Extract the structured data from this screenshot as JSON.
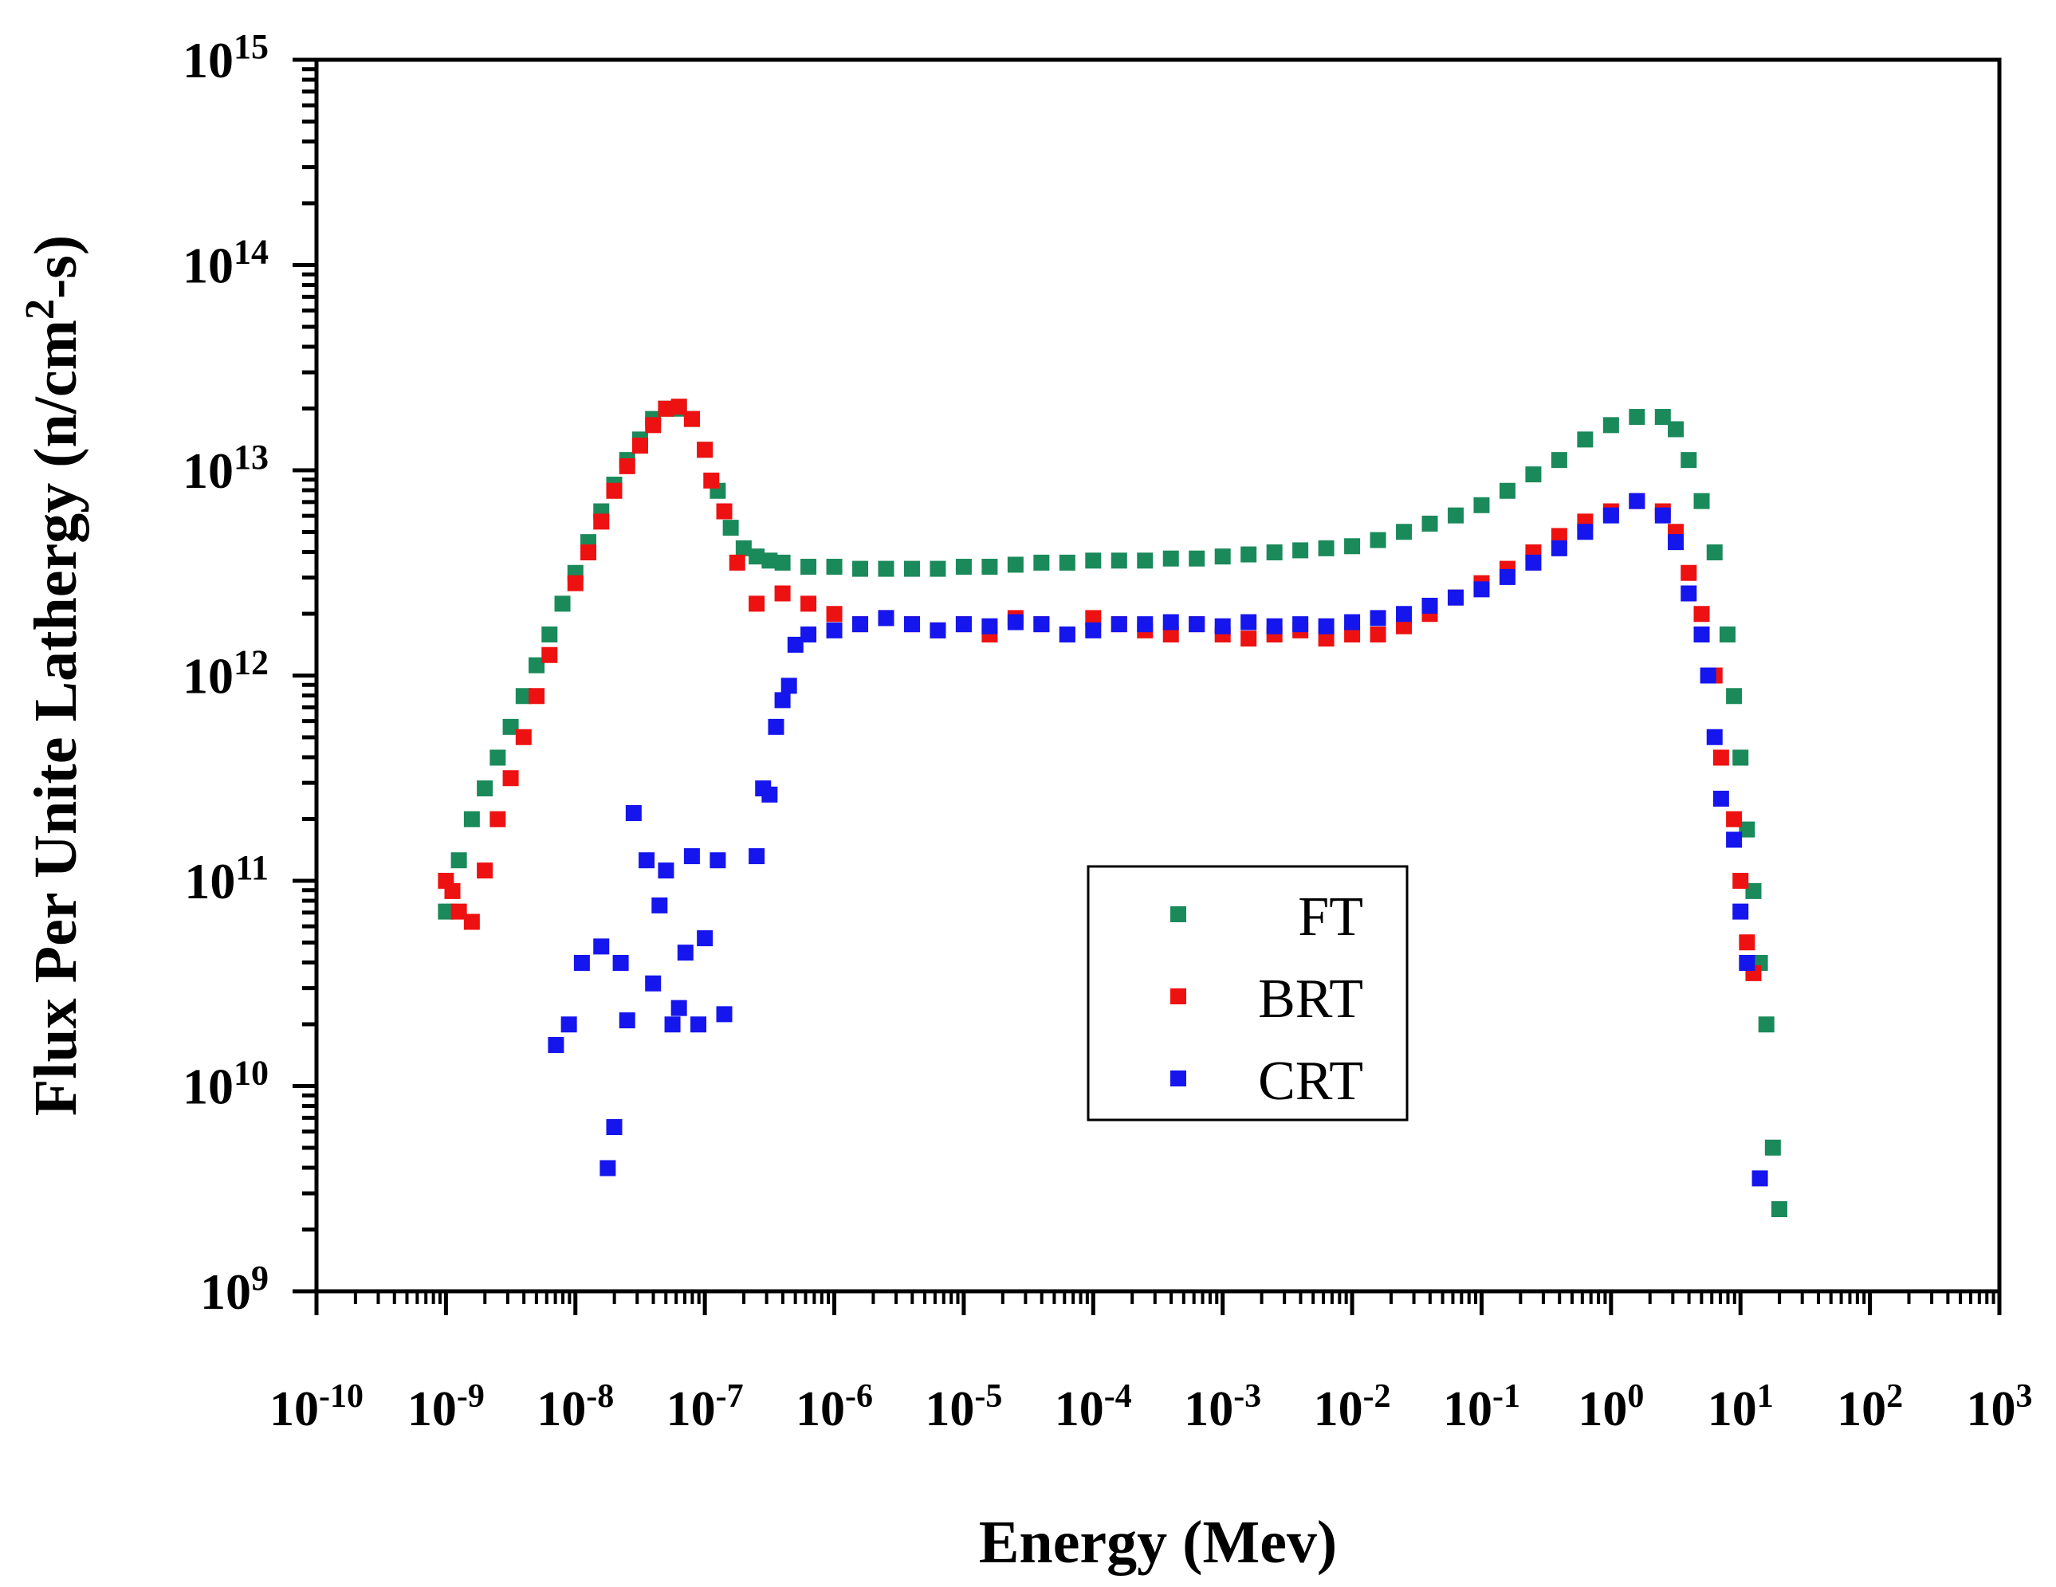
{
  "chart_data": {
    "type": "scatter",
    "title": "",
    "xlabel": "Energy (Mev)",
    "ylabel_main": "Flux Per Unite Lathergy (n/cm",
    "ylabel_sup": "2",
    "ylabel_tail": "-s)",
    "x_scale": "log",
    "y_scale": "log",
    "xlim_exp": [
      -10,
      3
    ],
    "ylim_exp": [
      9,
      15
    ],
    "x_tick_exponents": [
      "-10",
      "-9",
      "-8",
      "-7",
      "-6",
      "-5",
      "-4",
      "-3",
      "-2",
      "-1",
      "0",
      "1",
      "2",
      "3"
    ],
    "y_tick_exponents": [
      "9",
      "10",
      "11",
      "12",
      "13",
      "14",
      "15"
    ],
    "tick_base": "10",
    "legend_position": "center-right",
    "grid": false,
    "series": [
      {
        "name": "FT",
        "color": "#1a8a5a",
        "points": [
          [
            -9.0,
            10.85
          ],
          [
            -8.9,
            11.1
          ],
          [
            -8.8,
            11.3
          ],
          [
            -8.7,
            11.45
          ],
          [
            -8.6,
            11.6
          ],
          [
            -8.5,
            11.75
          ],
          [
            -8.4,
            11.9
          ],
          [
            -8.3,
            12.05
          ],
          [
            -8.2,
            12.2
          ],
          [
            -8.1,
            12.35
          ],
          [
            -8.0,
            12.5
          ],
          [
            -7.9,
            12.65
          ],
          [
            -7.8,
            12.8
          ],
          [
            -7.7,
            12.93
          ],
          [
            -7.6,
            13.05
          ],
          [
            -7.5,
            13.15
          ],
          [
            -7.4,
            13.25
          ],
          [
            -7.3,
            13.3
          ],
          [
            -7.2,
            13.3
          ],
          [
            -7.1,
            13.25
          ],
          [
            -7.0,
            13.1
          ],
          [
            -6.9,
            12.9
          ],
          [
            -6.8,
            12.72
          ],
          [
            -6.7,
            12.62
          ],
          [
            -6.6,
            12.58
          ],
          [
            -6.5,
            12.56
          ],
          [
            -6.4,
            12.55
          ],
          [
            -6.2,
            12.53
          ],
          [
            -6.0,
            12.53
          ],
          [
            -5.8,
            12.52
          ],
          [
            -5.6,
            12.52
          ],
          [
            -5.4,
            12.52
          ],
          [
            -5.2,
            12.52
          ],
          [
            -5.0,
            12.53
          ],
          [
            -4.8,
            12.53
          ],
          [
            -4.6,
            12.54
          ],
          [
            -4.4,
            12.55
          ],
          [
            -4.2,
            12.55
          ],
          [
            -4.0,
            12.56
          ],
          [
            -3.8,
            12.56
          ],
          [
            -3.6,
            12.56
          ],
          [
            -3.4,
            12.57
          ],
          [
            -3.2,
            12.57
          ],
          [
            -3.0,
            12.58
          ],
          [
            -2.8,
            12.59
          ],
          [
            -2.6,
            12.6
          ],
          [
            -2.4,
            12.61
          ],
          [
            -2.2,
            12.62
          ],
          [
            -2.0,
            12.63
          ],
          [
            -1.8,
            12.66
          ],
          [
            -1.6,
            12.7
          ],
          [
            -1.4,
            12.74
          ],
          [
            -1.2,
            12.78
          ],
          [
            -1.0,
            12.83
          ],
          [
            -0.8,
            12.9
          ],
          [
            -0.6,
            12.98
          ],
          [
            -0.4,
            13.05
          ],
          [
            -0.2,
            13.15
          ],
          [
            0.0,
            13.22
          ],
          [
            0.2,
            13.26
          ],
          [
            0.4,
            13.26
          ],
          [
            0.5,
            13.2
          ],
          [
            0.6,
            13.05
          ],
          [
            0.7,
            12.85
          ],
          [
            0.8,
            12.6
          ],
          [
            0.9,
            12.2
          ],
          [
            0.95,
            11.9
          ],
          [
            1.0,
            11.6
          ],
          [
            1.05,
            11.25
          ],
          [
            1.1,
            10.95
          ],
          [
            1.15,
            10.6
          ],
          [
            1.2,
            10.3
          ],
          [
            1.25,
            9.7
          ],
          [
            1.3,
            9.4
          ]
        ]
      },
      {
        "name": "BRT",
        "color": "#ee1111",
        "points": [
          [
            -9.0,
            11.0
          ],
          [
            -8.95,
            10.95
          ],
          [
            -8.9,
            10.85
          ],
          [
            -8.8,
            10.8
          ],
          [
            -8.7,
            11.05
          ],
          [
            -8.6,
            11.3
          ],
          [
            -8.5,
            11.5
          ],
          [
            -8.4,
            11.7
          ],
          [
            -8.3,
            11.9
          ],
          [
            -8.2,
            12.1
          ],
          [
            -8.0,
            12.45
          ],
          [
            -7.9,
            12.6
          ],
          [
            -7.8,
            12.75
          ],
          [
            -7.7,
            12.9
          ],
          [
            -7.6,
            13.02
          ],
          [
            -7.5,
            13.12
          ],
          [
            -7.4,
            13.22
          ],
          [
            -7.3,
            13.3
          ],
          [
            -7.2,
            13.31
          ],
          [
            -7.1,
            13.25
          ],
          [
            -7.0,
            13.1
          ],
          [
            -6.95,
            12.95
          ],
          [
            -6.85,
            12.8
          ],
          [
            -6.75,
            12.55
          ],
          [
            -6.6,
            12.35
          ],
          [
            -6.4,
            12.4
          ],
          [
            -6.2,
            12.35
          ],
          [
            -6.0,
            12.3
          ],
          [
            -5.8,
            12.25
          ],
          [
            -5.6,
            12.28
          ],
          [
            -5.4,
            12.25
          ],
          [
            -5.2,
            12.22
          ],
          [
            -5.0,
            12.25
          ],
          [
            -4.8,
            12.2
          ],
          [
            -4.6,
            12.28
          ],
          [
            -4.4,
            12.25
          ],
          [
            -4.2,
            12.2
          ],
          [
            -4.0,
            12.28
          ],
          [
            -3.8,
            12.25
          ],
          [
            -3.6,
            12.22
          ],
          [
            -3.4,
            12.2
          ],
          [
            -3.2,
            12.25
          ],
          [
            -3.0,
            12.2
          ],
          [
            -2.8,
            12.18
          ],
          [
            -2.6,
            12.2
          ],
          [
            -2.4,
            12.22
          ],
          [
            -2.2,
            12.18
          ],
          [
            -2.0,
            12.2
          ],
          [
            -1.8,
            12.2
          ],
          [
            -1.6,
            12.24
          ],
          [
            -1.4,
            12.3
          ],
          [
            -1.2,
            12.38
          ],
          [
            -1.0,
            12.45
          ],
          [
            -0.8,
            12.52
          ],
          [
            -0.6,
            12.6
          ],
          [
            -0.4,
            12.68
          ],
          [
            -0.2,
            12.75
          ],
          [
            0.0,
            12.8
          ],
          [
            0.2,
            12.85
          ],
          [
            0.4,
            12.8
          ],
          [
            0.5,
            12.7
          ],
          [
            0.6,
            12.5
          ],
          [
            0.7,
            12.3
          ],
          [
            0.8,
            12.0
          ],
          [
            0.85,
            11.6
          ],
          [
            0.95,
            11.3
          ],
          [
            1.0,
            11.0
          ],
          [
            1.05,
            10.7
          ],
          [
            1.1,
            10.55
          ]
        ]
      },
      {
        "name": "CRT",
        "color": "#1515ee",
        "points": [
          [
            -8.15,
            10.2
          ],
          [
            -8.05,
            10.3
          ],
          [
            -7.95,
            10.6
          ],
          [
            -7.8,
            10.68
          ],
          [
            -7.75,
            9.6
          ],
          [
            -7.7,
            9.8
          ],
          [
            -7.65,
            10.6
          ],
          [
            -7.6,
            10.32
          ],
          [
            -7.55,
            11.33
          ],
          [
            -7.45,
            11.1
          ],
          [
            -7.4,
            10.5
          ],
          [
            -7.35,
            10.88
          ],
          [
            -7.3,
            11.05
          ],
          [
            -7.25,
            10.3
          ],
          [
            -7.2,
            10.38
          ],
          [
            -7.15,
            10.65
          ],
          [
            -7.1,
            11.12
          ],
          [
            -7.05,
            10.3
          ],
          [
            -7.0,
            10.72
          ],
          [
            -6.9,
            11.1
          ],
          [
            -6.85,
            10.35
          ],
          [
            -6.6,
            11.12
          ],
          [
            -6.55,
            11.45
          ],
          [
            -6.5,
            11.42
          ],
          [
            -6.45,
            11.75
          ],
          [
            -6.4,
            11.88
          ],
          [
            -6.35,
            11.95
          ],
          [
            -6.3,
            12.15
          ],
          [
            -6.2,
            12.2
          ],
          [
            -6.0,
            12.22
          ],
          [
            -5.8,
            12.25
          ],
          [
            -5.6,
            12.28
          ],
          [
            -5.4,
            12.25
          ],
          [
            -5.2,
            12.22
          ],
          [
            -5.0,
            12.25
          ],
          [
            -4.8,
            12.24
          ],
          [
            -4.6,
            12.26
          ],
          [
            -4.4,
            12.25
          ],
          [
            -4.2,
            12.2
          ],
          [
            -4.0,
            12.22
          ],
          [
            -3.8,
            12.25
          ],
          [
            -3.6,
            12.25
          ],
          [
            -3.4,
            12.26
          ],
          [
            -3.2,
            12.25
          ],
          [
            -3.0,
            12.24
          ],
          [
            -2.8,
            12.26
          ],
          [
            -2.6,
            12.24
          ],
          [
            -2.4,
            12.25
          ],
          [
            -2.2,
            12.24
          ],
          [
            -2.0,
            12.26
          ],
          [
            -1.8,
            12.28
          ],
          [
            -1.6,
            12.3
          ],
          [
            -1.4,
            12.34
          ],
          [
            -1.2,
            12.38
          ],
          [
            -1.0,
            12.42
          ],
          [
            -0.8,
            12.48
          ],
          [
            -0.6,
            12.55
          ],
          [
            -0.4,
            12.62
          ],
          [
            -0.2,
            12.7
          ],
          [
            0.0,
            12.78
          ],
          [
            0.2,
            12.85
          ],
          [
            0.4,
            12.78
          ],
          [
            0.5,
            12.65
          ],
          [
            0.6,
            12.4
          ],
          [
            0.7,
            12.2
          ],
          [
            0.75,
            12.0
          ],
          [
            0.8,
            11.7
          ],
          [
            0.85,
            11.4
          ],
          [
            0.95,
            11.2
          ],
          [
            1.0,
            10.85
          ],
          [
            1.05,
            10.6
          ],
          [
            1.15,
            9.55
          ]
        ]
      }
    ]
  }
}
